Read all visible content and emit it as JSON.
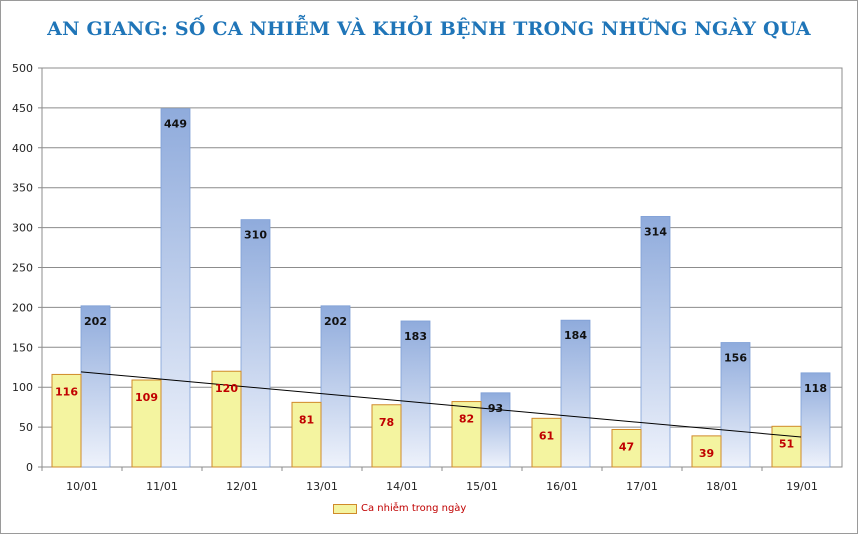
{
  "chart_data": {
    "type": "bar",
    "title": "AN GIANG: SỐ CA NHIỄM VÀ KHỎI BỆNH TRONG NHỮNG NGÀY QUA",
    "categories": [
      "10/01",
      "11/01",
      "12/01",
      "13/01",
      "14/01",
      "15/01",
      "16/01",
      "17/01",
      "18/01",
      "19/01"
    ],
    "series": [
      {
        "name": "Ca nhiễm trong ngày",
        "values": [
          116,
          109,
          120,
          81,
          78,
          82,
          61,
          47,
          39,
          51
        ],
        "color": "#f4f4a0",
        "border_color": "#d08a2a",
        "label_color": "#c00000"
      },
      {
        "values": [
          202,
          449,
          310,
          202,
          183,
          93,
          184,
          314,
          156,
          118
        ],
        "color": "#8fabdc",
        "gradient_to": "#eef2fb",
        "label_color": "#111111"
      }
    ],
    "trendline": {
      "series_index": 0,
      "type": "linear",
      "color": "#000000"
    },
    "ylim": [
      0,
      500
    ],
    "yticks": [
      0,
      50,
      100,
      150,
      200,
      250,
      300,
      350,
      400,
      450,
      500
    ],
    "grid": true,
    "xlabel": "",
    "ylabel": "",
    "legend": {
      "position": "bottom",
      "entries": [
        "Ca nhiễm trong ngày"
      ]
    }
  }
}
